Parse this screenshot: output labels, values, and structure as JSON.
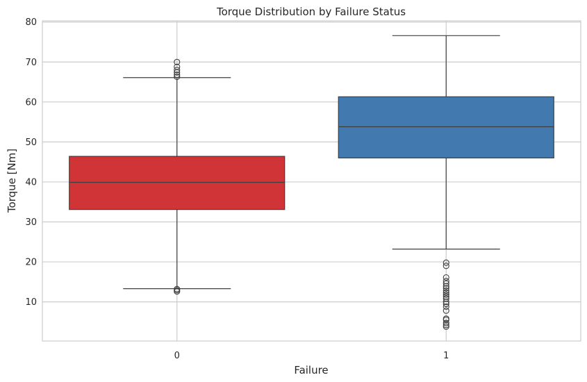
{
  "chart_data": {
    "type": "boxplot",
    "title": "Torque Distribution by Failure Status",
    "xlabel": "Failure",
    "ylabel": "Torque [Nm]",
    "categories": [
      "0",
      "1"
    ],
    "ylim": [
      0.2,
      80.3
    ],
    "yticks": [
      10,
      20,
      30,
      40,
      50,
      60,
      70,
      80
    ],
    "grid": true,
    "boxes": [
      {
        "category": "0",
        "color": "#d13436",
        "whisker_low": 13.3,
        "q1": 33.1,
        "median": 39.9,
        "q3": 46.4,
        "whisker_high": 66.1,
        "outliers": [
          12.6,
          12.9,
          13.2,
          66.3,
          66.8,
          67.4,
          68.0,
          68.8,
          70.0
        ]
      },
      {
        "category": "1",
        "color": "#4279ae",
        "whisker_low": 23.2,
        "q1": 46.0,
        "median": 53.8,
        "q3": 61.3,
        "whisker_high": 76.6,
        "outliers": [
          3.8,
          4.2,
          4.7,
          5.5,
          5.8,
          7.8,
          8.8,
          9.5,
          10.0,
          10.8,
          11.3,
          11.8,
          12.3,
          12.8,
          13.4,
          13.9,
          14.6,
          15.2,
          16.1,
          19.0,
          19.8
        ]
      }
    ]
  }
}
